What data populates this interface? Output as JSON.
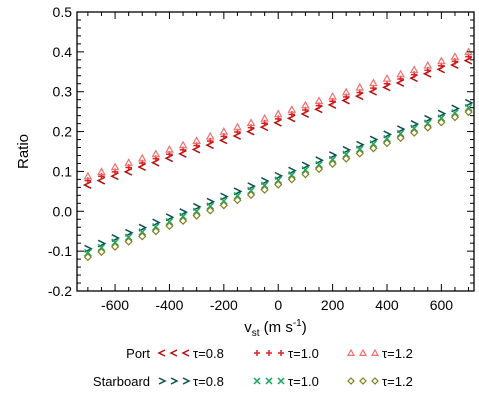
{
  "chart_data": {
    "type": "scatter",
    "ylabel": "Ratio",
    "xlabel": {
      "base": "v",
      "sub": "st",
      "unit_open": " (m s",
      "sup": "-1",
      "unit_close": ")"
    },
    "xlim": [
      -740,
      720
    ],
    "ylim": [
      -0.2,
      0.5
    ],
    "xticks": [
      -600,
      -400,
      -200,
      0,
      200,
      400,
      600
    ],
    "xtick_labels": [
      "-600",
      "-400",
      "-200",
      "0",
      "200",
      "400",
      "600"
    ],
    "yticks": [
      -0.2,
      -0.1,
      0.0,
      0.1,
      0.2,
      0.3,
      0.4,
      0.5
    ],
    "ytick_labels": [
      "-0.2",
      "-0.1",
      "0.0",
      "0.1",
      "0.2",
      "0.3",
      "0.4",
      "0.5"
    ],
    "x": [
      -700,
      -650,
      -600,
      -550,
      -500,
      -450,
      -400,
      -350,
      -300,
      -250,
      -200,
      -150,
      -100,
      -50,
      0,
      50,
      100,
      150,
      200,
      250,
      300,
      350,
      400,
      450,
      500,
      550,
      600,
      650,
      700
    ],
    "series": [
      {
        "group": "Port",
        "label": "τ=0.8",
        "color": "#b01010",
        "marker": "<",
        "y": [
          0.066,
          0.077,
          0.088,
          0.099,
          0.111,
          0.122,
          0.133,
          0.144,
          0.155,
          0.166,
          0.178,
          0.189,
          0.2,
          0.211,
          0.222,
          0.233,
          0.244,
          0.256,
          0.267,
          0.278,
          0.289,
          0.3,
          0.311,
          0.322,
          0.334,
          0.345,
          0.356,
          0.367,
          0.378
        ]
      },
      {
        "group": "Port",
        "label": "τ=1.0",
        "color": "#e02020",
        "marker": "+",
        "y": [
          0.077,
          0.088,
          0.099,
          0.11,
          0.121,
          0.132,
          0.143,
          0.154,
          0.165,
          0.176,
          0.188,
          0.199,
          0.21,
          0.221,
          0.232,
          0.243,
          0.254,
          0.265,
          0.276,
          0.287,
          0.298,
          0.309,
          0.32,
          0.332,
          0.343,
          0.354,
          0.365,
          0.376,
          0.388
        ]
      },
      {
        "group": "Port",
        "label": "τ=1.2",
        "color": "#f07070",
        "marker": "triangle",
        "y": [
          0.088,
          0.099,
          0.111,
          0.122,
          0.133,
          0.144,
          0.155,
          0.166,
          0.177,
          0.188,
          0.2,
          0.211,
          0.222,
          0.233,
          0.244,
          0.255,
          0.266,
          0.277,
          0.288,
          0.299,
          0.311,
          0.322,
          0.333,
          0.344,
          0.355,
          0.366,
          0.377,
          0.388,
          0.4
        ]
      },
      {
        "group": "Starboard",
        "label": "τ=0.8",
        "color": "#0d4f4f",
        "marker": ">",
        "y": [
          -0.094,
          -0.081,
          -0.067,
          -0.054,
          -0.041,
          -0.028,
          -0.015,
          -0.002,
          0.011,
          0.024,
          0.037,
          0.05,
          0.063,
          0.076,
          0.089,
          0.102,
          0.115,
          0.128,
          0.141,
          0.154,
          0.167,
          0.18,
          0.193,
          0.206,
          0.219,
          0.232,
          0.245,
          0.258,
          0.272
        ]
      },
      {
        "group": "Starboard",
        "label": "τ=1.0",
        "color": "#18a860",
        "marker": "x",
        "y": [
          -0.104,
          -0.091,
          -0.078,
          -0.065,
          -0.052,
          -0.039,
          -0.026,
          -0.013,
          0.0,
          0.013,
          0.026,
          0.039,
          0.052,
          0.065,
          0.078,
          0.091,
          0.104,
          0.117,
          0.13,
          0.143,
          0.156,
          0.169,
          0.182,
          0.195,
          0.208,
          0.221,
          0.234,
          0.247,
          0.26
        ]
      },
      {
        "group": "Starboard",
        "label": "τ=1.2",
        "color": "#808020",
        "marker": "diamond",
        "y": [
          -0.115,
          -0.102,
          -0.089,
          -0.076,
          -0.063,
          -0.05,
          -0.037,
          -0.024,
          -0.011,
          0.002,
          0.015,
          0.028,
          0.041,
          0.054,
          0.067,
          0.08,
          0.093,
          0.106,
          0.119,
          0.132,
          0.145,
          0.158,
          0.171,
          0.184,
          0.197,
          0.21,
          0.223,
          0.236,
          0.249
        ]
      }
    ],
    "legend": {
      "placement": "bottom",
      "rows": [
        {
          "title": "Port",
          "entries": [
            0,
            1,
            2
          ]
        },
        {
          "title": "Starboard",
          "entries": [
            3,
            4,
            5
          ]
        }
      ]
    }
  }
}
